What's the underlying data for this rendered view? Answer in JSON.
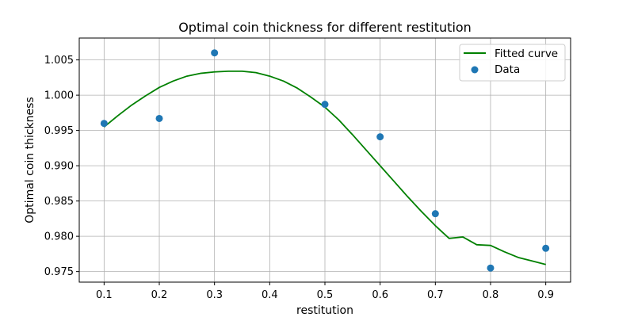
{
  "chart_data": {
    "type": "line",
    "title": "Optimal coin thickness for different restitution",
    "xlabel": "restitution",
    "ylabel": "Optimal coin thickness",
    "xlim": [
      0.055,
      0.945
    ],
    "ylim": [
      0.9735,
      1.0081
    ],
    "xticks": [
      0.1,
      0.2,
      0.3,
      0.4,
      0.5,
      0.6,
      0.7,
      0.8,
      0.9
    ],
    "xtick_labels": [
      "0.1",
      "0.2",
      "0.3",
      "0.4",
      "0.5",
      "0.6",
      "0.7",
      "0.8",
      "0.9"
    ],
    "yticks": [
      0.975,
      0.98,
      0.985,
      0.99,
      0.995,
      1.0,
      1.005
    ],
    "ytick_labels": [
      "0.975",
      "0.980",
      "0.985",
      "0.990",
      "0.995",
      "1.000",
      "1.005"
    ],
    "grid": true,
    "legend_position": "top-right",
    "series": [
      {
        "name": "Fitted curve",
        "kind": "line",
        "color": "#008000",
        "x": [
          0.1,
          0.125,
          0.15,
          0.175,
          0.2,
          0.225,
          0.25,
          0.275,
          0.3,
          0.325,
          0.35,
          0.375,
          0.4,
          0.425,
          0.45,
          0.475,
          0.5,
          0.525,
          0.55,
          0.575,
          0.6,
          0.625,
          0.65,
          0.675,
          0.7,
          0.725,
          0.75,
          0.775,
          0.8,
          0.825,
          0.85,
          0.875,
          0.9
        ],
        "y": [
          0.9955,
          0.9971,
          0.9986,
          0.9999,
          1.0011,
          1.002,
          1.0027,
          1.0031,
          1.0033,
          1.0034,
          1.0034,
          1.0032,
          1.0027,
          1.002,
          1.001,
          0.9997,
          0.9983,
          0.9965,
          0.9944,
          0.9922,
          0.99,
          0.9878,
          0.9856,
          0.9835,
          0.9815,
          0.9797,
          0.9799,
          0.9788,
          0.9787,
          0.9778,
          0.977,
          0.9765,
          0.976
        ]
      },
      {
        "name": "Data",
        "kind": "scatter",
        "color": "#1f77b4",
        "x": [
          0.1,
          0.2,
          0.3,
          0.5,
          0.6,
          0.7,
          0.8,
          0.9
        ],
        "y": [
          0.996,
          0.9967,
          1.006,
          0.9987,
          0.9941,
          0.9832,
          0.9755,
          0.9783
        ]
      }
    ]
  }
}
